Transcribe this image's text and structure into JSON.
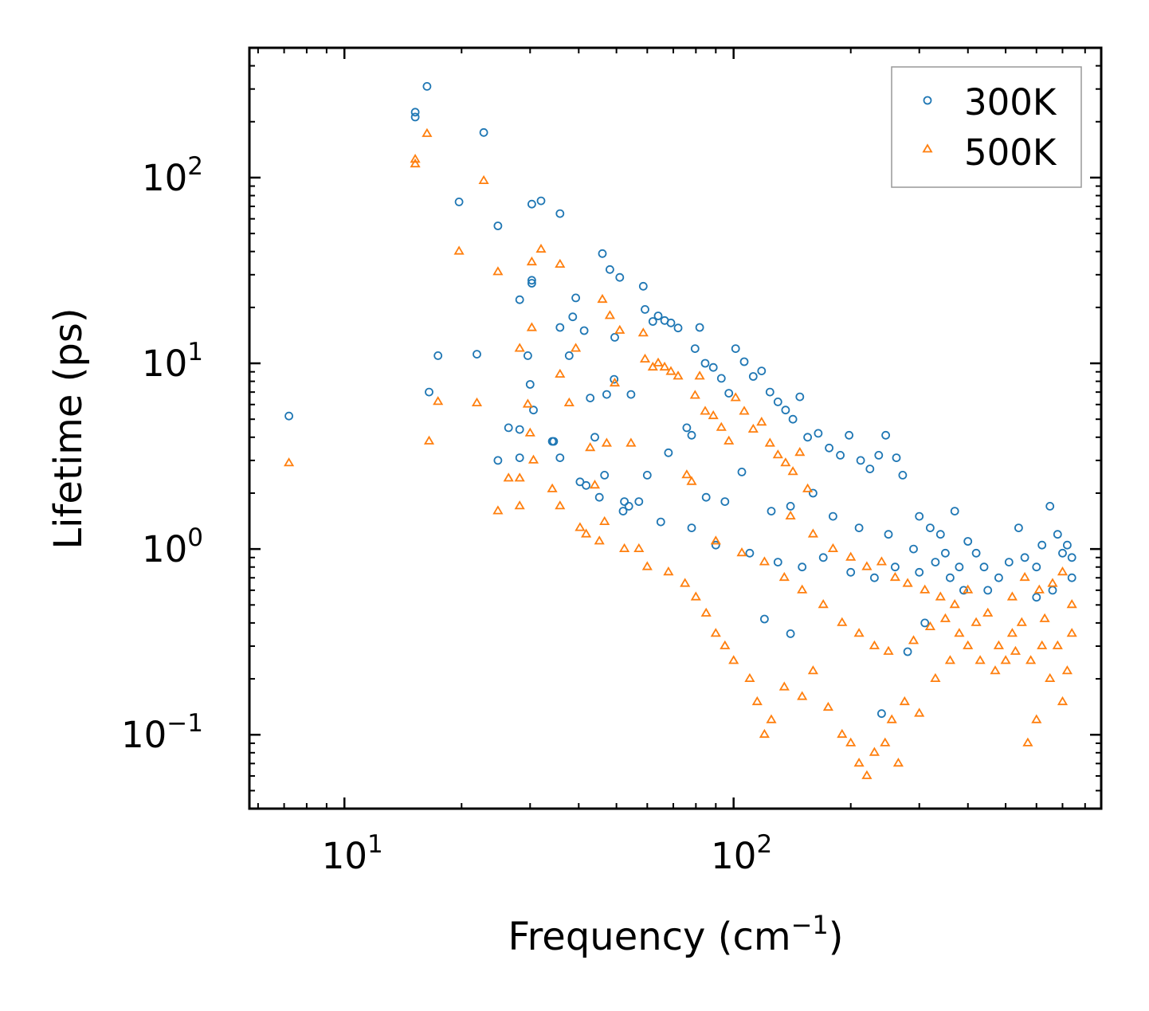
{
  "chart_data": {
    "type": "scatter",
    "xscale": "log",
    "yscale": "log",
    "xlabel": "Frequency (cm",
    "xlabel_sup": "−1",
    "xlabel_close": ")",
    "ylabel": "Lifetime (ps)",
    "xlim": [
      5.7,
      880
    ],
    "ylim": [
      0.04,
      500
    ],
    "x_ticks": [
      {
        "value": 10,
        "base": "10",
        "exp": "1"
      },
      {
        "value": 100,
        "base": "10",
        "exp": "2"
      }
    ],
    "y_ticks": [
      {
        "value": 0.1,
        "base": "10",
        "exp": "−1"
      },
      {
        "value": 1,
        "base": "10",
        "exp": "0"
      },
      {
        "value": 10,
        "base": "10",
        "exp": "1"
      },
      {
        "value": 100,
        "base": "10",
        "exp": "2"
      }
    ],
    "legend_position": "top-right",
    "series": [
      {
        "name": "300K",
        "marker": "circle",
        "color": "#1f77b4",
        "points": [
          [
            7.2,
            5.2
          ],
          [
            15.2,
            225
          ],
          [
            15.2,
            212
          ],
          [
            16.3,
            310
          ],
          [
            16.5,
            7.0
          ],
          [
            17.4,
            11.0
          ],
          [
            19.7,
            74
          ],
          [
            21.9,
            11.2
          ],
          [
            22.8,
            175
          ],
          [
            24.8,
            55
          ],
          [
            24.8,
            3.0
          ],
          [
            26.4,
            4.5
          ],
          [
            28.2,
            22
          ],
          [
            28.2,
            4.4
          ],
          [
            28.2,
            3.1
          ],
          [
            29.6,
            11
          ],
          [
            30.0,
            7.7
          ],
          [
            30.3,
            72
          ],
          [
            30.3,
            28
          ],
          [
            30.3,
            27
          ],
          [
            30.6,
            5.6
          ],
          [
            32.0,
            75
          ],
          [
            34.2,
            3.8
          ],
          [
            34.5,
            3.8
          ],
          [
            35.8,
            64
          ],
          [
            35.8,
            15.6
          ],
          [
            35.8,
            3.1
          ],
          [
            37.8,
            11
          ],
          [
            38.6,
            17.8
          ],
          [
            39.3,
            22.5
          ],
          [
            40.3,
            2.3
          ],
          [
            41.3,
            15
          ],
          [
            41.8,
            2.2
          ],
          [
            42.8,
            6.5
          ],
          [
            44.0,
            4.0
          ],
          [
            45.2,
            1.9
          ],
          [
            46.0,
            39
          ],
          [
            46.6,
            2.5
          ],
          [
            47.2,
            6.8
          ],
          [
            48.1,
            32
          ],
          [
            49.3,
            8.2
          ],
          [
            49.5,
            13.8
          ],
          [
            51.0,
            29
          ],
          [
            52.4,
            1.8
          ],
          [
            53.8,
            1.7
          ],
          [
            54.5,
            6.8
          ],
          [
            57.1,
            1.8
          ],
          [
            58.6,
            26
          ],
          [
            59.2,
            19.5
          ],
          [
            62.0,
            16.8
          ],
          [
            64.0,
            18
          ],
          [
            66.5,
            17
          ],
          [
            69.0,
            16.5
          ],
          [
            72.0,
            15.5
          ],
          [
            75.8,
            4.5
          ],
          [
            78.0,
            4.1
          ],
          [
            79.6,
            12
          ],
          [
            81.8,
            15.6
          ],
          [
            84.5,
            10
          ],
          [
            88.7,
            9.5
          ],
          [
            93.0,
            8.3
          ],
          [
            97.2,
            6.9
          ],
          [
            101.2,
            12
          ],
          [
            106.5,
            10.2
          ],
          [
            112.3,
            8.5
          ],
          [
            118.0,
            9.1
          ],
          [
            124.0,
            7.0
          ],
          [
            130.0,
            6.2
          ],
          [
            136.0,
            5.6
          ],
          [
            142.0,
            5.0
          ],
          [
            148.0,
            6.6
          ],
          [
            155.0,
            4.0
          ],
          [
            165.0,
            4.2
          ],
          [
            176.0,
            3.5
          ],
          [
            188.0,
            3.2
          ],
          [
            198.0,
            4.1
          ],
          [
            212.0,
            3.0
          ],
          [
            224.0,
            2.7
          ],
          [
            236.0,
            3.2
          ],
          [
            246.0,
            4.1
          ],
          [
            262.0,
            3.1
          ],
          [
            272.0,
            2.5
          ],
          [
            300.0,
            1.5
          ],
          [
            320.0,
            1.3
          ],
          [
            340.0,
            1.2
          ],
          [
            370.0,
            1.6
          ],
          [
            400.0,
            1.1
          ],
          [
            420.0,
            0.95
          ],
          [
            440.0,
            0.8
          ],
          [
            480.0,
            0.7
          ],
          [
            510.0,
            0.85
          ],
          [
            540.0,
            1.3
          ],
          [
            560.0,
            0.9
          ],
          [
            600.0,
            0.8
          ],
          [
            620.0,
            1.05
          ],
          [
            650.0,
            1.7
          ],
          [
            680.0,
            1.2
          ],
          [
            700.0,
            0.95
          ],
          [
            720.0,
            1.05
          ],
          [
            740.0,
            0.9
          ],
          [
            60.0,
            2.5
          ],
          [
            68.0,
            3.3
          ],
          [
            85.0,
            1.9
          ],
          [
            95.0,
            1.8
          ],
          [
            105.0,
            2.6
          ],
          [
            125.0,
            1.6
          ],
          [
            140.0,
            1.7
          ],
          [
            160.0,
            2.0
          ],
          [
            180.0,
            1.5
          ],
          [
            210.0,
            1.3
          ],
          [
            250.0,
            1.2
          ],
          [
            290.0,
            1.0
          ],
          [
            350.0,
            0.95
          ],
          [
            380.0,
            0.8
          ],
          [
            52.0,
            1.6
          ],
          [
            65.0,
            1.4
          ],
          [
            78.0,
            1.3
          ],
          [
            90.0,
            1.05
          ],
          [
            110.0,
            0.95
          ],
          [
            130.0,
            0.85
          ],
          [
            150.0,
            0.8
          ],
          [
            170.0,
            0.9
          ],
          [
            200.0,
            0.75
          ],
          [
            230.0,
            0.7
          ],
          [
            260.0,
            0.8
          ],
          [
            300.0,
            0.75
          ],
          [
            330.0,
            0.85
          ],
          [
            360.0,
            0.7
          ],
          [
            390.0,
            0.6
          ],
          [
            450.0,
            0.6
          ],
          [
            600.0,
            0.55
          ],
          [
            660.0,
            0.6
          ],
          [
            740.0,
            0.7
          ],
          [
            240.0,
            0.13
          ],
          [
            280.0,
            0.28
          ],
          [
            310.0,
            0.4
          ],
          [
            140.0,
            0.35
          ],
          [
            120.0,
            0.42
          ]
        ]
      },
      {
        "name": "500K",
        "marker": "triangle",
        "color": "#ff7f0e",
        "points": [
          [
            7.2,
            2.9
          ],
          [
            15.2,
            125
          ],
          [
            15.2,
            118
          ],
          [
            16.3,
            172
          ],
          [
            16.5,
            3.8
          ],
          [
            17.4,
            6.2
          ],
          [
            19.7,
            40
          ],
          [
            21.9,
            6.1
          ],
          [
            22.8,
            96
          ],
          [
            24.8,
            31
          ],
          [
            24.8,
            1.6
          ],
          [
            26.4,
            2.4
          ],
          [
            28.2,
            12
          ],
          [
            28.2,
            2.4
          ],
          [
            28.2,
            1.7
          ],
          [
            29.6,
            6.0
          ],
          [
            30.0,
            4.2
          ],
          [
            30.3,
            35
          ],
          [
            30.3,
            15.5
          ],
          [
            30.6,
            3.0
          ],
          [
            32.0,
            41
          ],
          [
            34.2,
            2.1
          ],
          [
            35.8,
            34
          ],
          [
            35.8,
            8.7
          ],
          [
            35.8,
            1.7
          ],
          [
            37.8,
            6.1
          ],
          [
            39.3,
            12
          ],
          [
            40.3,
            1.3
          ],
          [
            41.8,
            1.2
          ],
          [
            42.8,
            3.5
          ],
          [
            44.0,
            2.2
          ],
          [
            45.2,
            1.1
          ],
          [
            46.0,
            22
          ],
          [
            46.6,
            1.4
          ],
          [
            47.2,
            3.7
          ],
          [
            48.1,
            18
          ],
          [
            49.5,
            7.8
          ],
          [
            51.0,
            15
          ],
          [
            52.4,
            1.0
          ],
          [
            54.5,
            3.7
          ],
          [
            57.1,
            1.0
          ],
          [
            58.6,
            14.5
          ],
          [
            59.2,
            10.5
          ],
          [
            62.0,
            9.5
          ],
          [
            64.0,
            10
          ],
          [
            66.5,
            9.5
          ],
          [
            69.0,
            9.0
          ],
          [
            72.0,
            8.5
          ],
          [
            75.8,
            2.5
          ],
          [
            78.0,
            2.3
          ],
          [
            79.6,
            6.7
          ],
          [
            81.8,
            8.5
          ],
          [
            84.5,
            5.5
          ],
          [
            88.7,
            5.2
          ],
          [
            93.0,
            4.5
          ],
          [
            97.2,
            3.8
          ],
          [
            101.2,
            6.5
          ],
          [
            106.5,
            5.5
          ],
          [
            112.3,
            4.4
          ],
          [
            118.0,
            4.8
          ],
          [
            124.0,
            3.7
          ],
          [
            130.0,
            3.2
          ],
          [
            136.0,
            2.9
          ],
          [
            142.0,
            2.6
          ],
          [
            148.0,
            3.3
          ],
          [
            155.0,
            2.1
          ],
          [
            60.0,
            0.8
          ],
          [
            68.0,
            0.75
          ],
          [
            75.0,
            0.65
          ],
          [
            80.0,
            0.55
          ],
          [
            85.0,
            0.45
          ],
          [
            90.0,
            0.35
          ],
          [
            95.0,
            0.3
          ],
          [
            100.0,
            0.25
          ],
          [
            110.0,
            0.2
          ],
          [
            115.0,
            0.15
          ],
          [
            120.0,
            0.1
          ],
          [
            125.0,
            0.12
          ],
          [
            135.0,
            0.18
          ],
          [
            150.0,
            0.16
          ],
          [
            160.0,
            0.22
          ],
          [
            175.0,
            0.14
          ],
          [
            190.0,
            0.1
          ],
          [
            200.0,
            0.09
          ],
          [
            210.0,
            0.07
          ],
          [
            220.0,
            0.06
          ],
          [
            230.0,
            0.08
          ],
          [
            245.0,
            0.09
          ],
          [
            255.0,
            0.12
          ],
          [
            265.0,
            0.07
          ],
          [
            275.0,
            0.15
          ],
          [
            300.0,
            0.13
          ],
          [
            330.0,
            0.2
          ],
          [
            360.0,
            0.25
          ],
          [
            400.0,
            0.3
          ],
          [
            430.0,
            0.25
          ],
          [
            470.0,
            0.22
          ],
          [
            500.0,
            0.25
          ],
          [
            520.0,
            0.35
          ],
          [
            550.0,
            0.4
          ],
          [
            570.0,
            0.09
          ],
          [
            600.0,
            0.12
          ],
          [
            620.0,
            0.3
          ],
          [
            650.0,
            0.2
          ],
          [
            700.0,
            0.15
          ],
          [
            740.0,
            0.35
          ],
          [
            140.0,
            1.5
          ],
          [
            160.0,
            1.2
          ],
          [
            180.0,
            1.0
          ],
          [
            200.0,
            0.9
          ],
          [
            220.0,
            0.8
          ],
          [
            240.0,
            0.85
          ],
          [
            260.0,
            0.7
          ],
          [
            280.0,
            0.65
          ],
          [
            310.0,
            0.6
          ],
          [
            340.0,
            0.55
          ],
          [
            370.0,
            0.5
          ],
          [
            400.0,
            0.6
          ],
          [
            450.0,
            0.45
          ],
          [
            520.0,
            0.55
          ],
          [
            560.0,
            0.7
          ],
          [
            610.0,
            0.6
          ],
          [
            660.0,
            0.65
          ],
          [
            700.0,
            0.75
          ],
          [
            740.0,
            0.5
          ],
          [
            90.0,
            1.1
          ],
          [
            105.0,
            0.95
          ],
          [
            120.0,
            0.85
          ],
          [
            135.0,
            0.7
          ],
          [
            150.0,
            0.6
          ],
          [
            170.0,
            0.5
          ],
          [
            190.0,
            0.4
          ],
          [
            210.0,
            0.35
          ],
          [
            230.0,
            0.3
          ],
          [
            250.0,
            0.28
          ],
          [
            290.0,
            0.32
          ],
          [
            320.0,
            0.38
          ],
          [
            350.0,
            0.42
          ],
          [
            380.0,
            0.35
          ],
          [
            420.0,
            0.4
          ],
          [
            480.0,
            0.3
          ],
          [
            530.0,
            0.28
          ],
          [
            580.0,
            0.25
          ],
          [
            630.0,
            0.42
          ],
          [
            680.0,
            0.3
          ],
          [
            720.0,
            0.22
          ]
        ]
      }
    ]
  }
}
